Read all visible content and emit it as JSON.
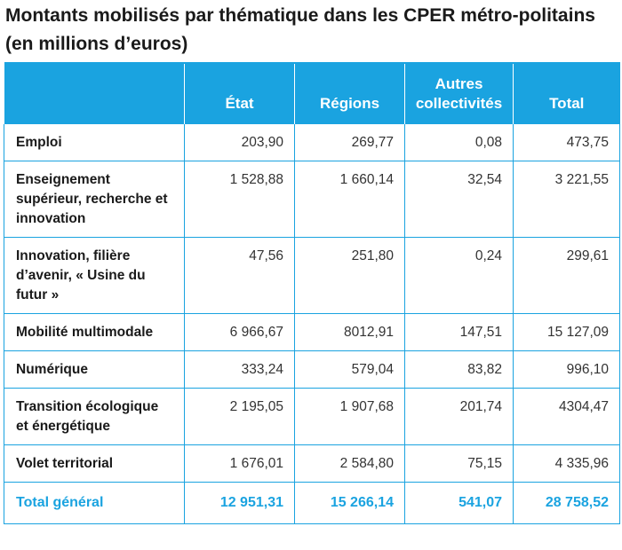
{
  "title": "Montants mobilisés par thématique dans les CPER métro-politains (en millions d’euros)",
  "colors": {
    "accent": "#1aa3e0"
  },
  "columns": [
    "",
    "État",
    "Régions",
    "Autres collectivités",
    "Total"
  ],
  "rows": [
    {
      "label": "Emploi",
      "etat": "203,90",
      "regions": "269,77",
      "autres": "0,08",
      "total": "473,75"
    },
    {
      "label": "Enseignement supérieur, recherche et innovation",
      "etat": "1 528,88",
      "regions": "1 660,14",
      "autres": "32,54",
      "total": "3 221,55"
    },
    {
      "label": "Innovation, filière d’avenir, « Usine du futur »",
      "etat": "47,56",
      "regions": "251,80",
      "autres": "0,24",
      "total": "299,61"
    },
    {
      "label": "Mobilité multimodale",
      "etat": "6 966,67",
      "regions": "8012,91",
      "autres": "147,51",
      "total": "15 127,09"
    },
    {
      "label": "Numérique",
      "etat": "333,24",
      "regions": "579,04",
      "autres": "83,82",
      "total": "996,10"
    },
    {
      "label": "Transition écologique et énergétique",
      "etat": "2 195,05",
      "regions": "1 907,68",
      "autres": "201,74",
      "total": "4304,47"
    },
    {
      "label": "Volet territorial",
      "etat": "1 676,01",
      "regions": "2 584,80",
      "autres": "75,15",
      "total": "4 335,96"
    }
  ],
  "total_row": {
    "label": "Total général",
    "etat": "12 951,31",
    "regions": "15 266,14",
    "autres": "541,07",
    "total": "28 758,52"
  }
}
